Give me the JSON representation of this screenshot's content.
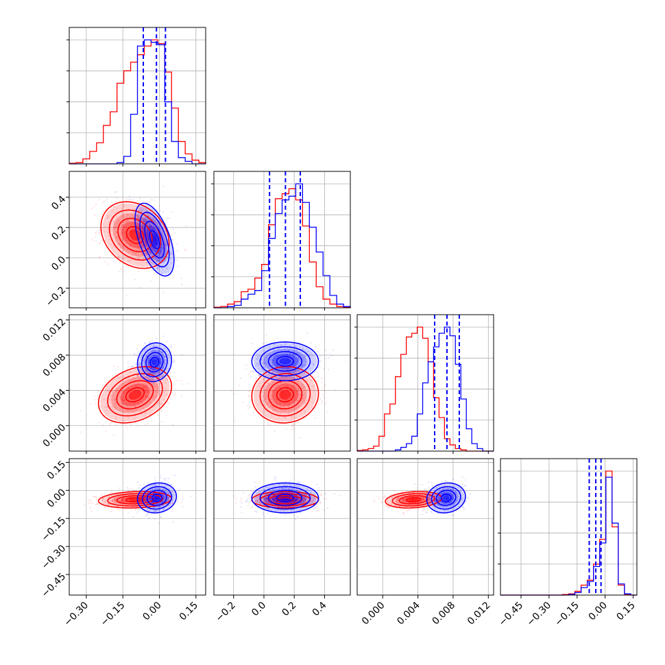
{
  "chart_data": {
    "type": "corner",
    "title": "",
    "colors": {
      "a": "#ff0000",
      "b": "#0000ff",
      "grid": "#b0b0b0",
      "frame": "#000000"
    },
    "series": [
      {
        "color_key": "a"
      },
      {
        "color_key": "b"
      }
    ],
    "grid": true,
    "params": [
      {
        "label": "",
        "range": [
          -0.37,
          0.19
        ],
        "ticks": [
          -0.3,
          -0.15,
          0.0,
          0.15
        ],
        "tick_labels": [
          "−0.30",
          "−0.15",
          "0.00",
          "0.15"
        ],
        "hist_bins": 20,
        "hist_a": [
          0.5,
          1,
          4,
          10,
          17,
          31,
          42,
          65,
          75,
          82,
          88,
          95,
          100,
          97,
          74,
          45,
          18,
          8,
          3,
          1
        ],
        "hist_b": [
          0,
          0,
          0,
          0,
          0,
          0,
          0,
          1,
          6,
          40,
          95,
          100,
          98,
          96,
          50,
          18,
          5,
          2,
          0,
          0
        ],
        "quantiles_b": [
          -0.066,
          -0.012,
          0.025
        ]
      },
      {
        "label": "",
        "range": [
          -0.33,
          0.57
        ],
        "ticks": [
          -0.2,
          0.0,
          0.2,
          0.4
        ],
        "tick_labels": [
          "−0.2",
          "0.0",
          "0.2",
          "0.4"
        ],
        "hist_bins": 20,
        "hist_a": [
          0.5,
          1,
          3,
          5,
          13,
          15,
          24,
          35,
          67,
          88,
          92,
          96,
          87,
          66,
          37,
          17,
          7,
          3,
          1,
          0.5
        ],
        "hist_b": [
          0,
          0,
          1,
          2,
          7,
          11,
          14,
          30,
          56,
          76,
          87,
          90,
          100,
          85,
          65,
          45,
          26,
          10,
          3,
          1
        ],
        "quantiles_b": [
          0.037,
          0.142,
          0.24
        ]
      },
      {
        "label": "",
        "range": [
          -0.0029,
          0.0126
        ],
        "ticks": [
          0.0,
          0.004,
          0.008,
          0.012
        ],
        "tick_labels": [
          "0.000",
          "0.004",
          "0.008",
          "0.012"
        ],
        "hist_bins": 25,
        "hist_a": [
          0.5,
          1,
          2,
          4,
          12,
          30,
          38,
          60,
          78,
          92,
          95,
          100,
          91,
          72,
          43,
          27,
          10,
          5,
          2,
          1,
          0,
          0,
          0,
          0,
          0
        ],
        "hist_b": [
          0,
          0,
          0,
          0,
          0,
          0,
          0,
          1,
          3,
          6,
          12,
          30,
          55,
          72,
          84,
          95,
          100,
          93,
          70,
          42,
          18,
          6,
          2,
          0,
          0
        ],
        "quantiles_b": [
          0.0059,
          0.0073,
          0.0087
        ]
      },
      {
        "label": "",
        "range": [
          -0.56,
          0.17
        ],
        "ticks": [
          -0.45,
          -0.3,
          -0.15,
          0.0,
          0.15
        ],
        "tick_labels": [
          "−0.45",
          "−0.30",
          "−0.15",
          "0.00",
          "0.15"
        ],
        "hist_bins": 22,
        "hist_a": [
          0,
          0,
          0,
          0,
          0,
          0,
          0,
          0,
          0,
          0,
          0.5,
          1,
          3,
          8,
          12,
          25,
          45,
          100,
          55,
          8,
          0.5,
          0
        ],
        "hist_b": [
          0,
          0,
          0,
          0,
          0,
          0,
          0,
          0,
          0,
          0,
          0,
          0.5,
          2,
          6,
          11,
          23,
          42,
          95,
          58,
          9,
          1,
          0
        ],
        "quantiles_b": [
          -0.085,
          -0.05,
          -0.022
        ]
      }
    ],
    "pairs": [
      {
        "row": 1,
        "col": 0,
        "a_mean": [
          -0.1,
          0.15
        ],
        "a_sd": [
          0.07,
          0.11
        ],
        "a_rho": -0.25,
        "b_mean": [
          -0.02,
          0.12
        ],
        "b_sd": [
          0.04,
          0.12
        ],
        "b_rho": -0.55
      },
      {
        "row": 2,
        "col": 0,
        "a_mean": [
          -0.1,
          0.0035
        ],
        "a_sd": [
          0.075,
          0.0016
        ],
        "a_rho": 0.3,
        "b_mean": [
          -0.02,
          0.0072
        ],
        "b_sd": [
          0.035,
          0.0011
        ],
        "b_rho": 0.1
      },
      {
        "row": 2,
        "col": 1,
        "a_mean": [
          0.14,
          0.0035
        ],
        "a_sd": [
          0.11,
          0.0016
        ],
        "a_rho": 0.05,
        "b_mean": [
          0.14,
          0.0073
        ],
        "b_sd": [
          0.11,
          0.0011
        ],
        "b_rho": 0.0
      },
      {
        "row": 3,
        "col": 0,
        "a_mean": [
          -0.1,
          -0.05
        ],
        "a_sd": [
          0.075,
          0.022
        ],
        "a_rho": 0.15,
        "b_mean": [
          -0.01,
          -0.04
        ],
        "b_sd": [
          0.04,
          0.04
        ],
        "b_rho": 0.1
      },
      {
        "row": 3,
        "col": 1,
        "a_mean": [
          0.14,
          -0.05
        ],
        "a_sd": [
          0.11,
          0.022
        ],
        "a_rho": 0.0,
        "b_mean": [
          0.14,
          -0.04
        ],
        "b_sd": [
          0.11,
          0.04
        ],
        "b_rho": 0.0
      },
      {
        "row": 3,
        "col": 2,
        "a_mean": [
          0.0035,
          -0.05
        ],
        "a_sd": [
          0.0016,
          0.022
        ],
        "a_rho": 0.2,
        "b_mean": [
          0.0072,
          -0.04
        ],
        "b_sd": [
          0.0011,
          0.04
        ],
        "b_rho": 0.1
      }
    ]
  }
}
